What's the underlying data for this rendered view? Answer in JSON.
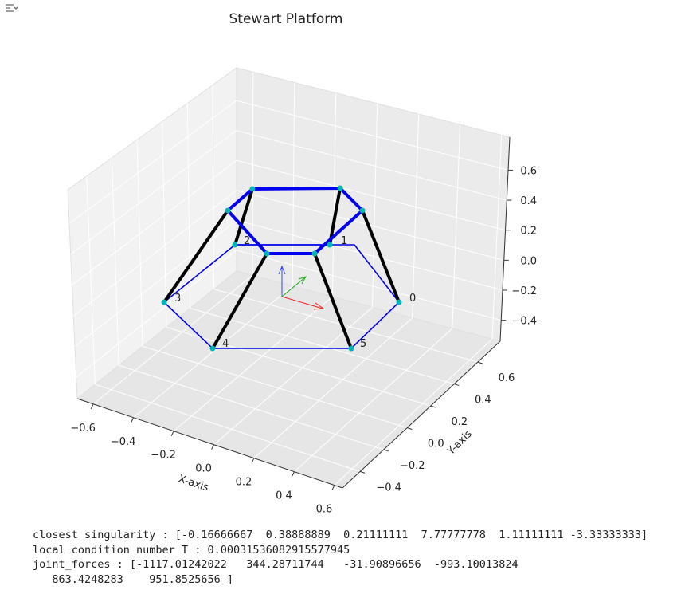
{
  "chart_data": {
    "type": "line3d",
    "title": "Stewart Platform",
    "xlabel": "X-axis",
    "ylabel": "Y-axis",
    "xlim": [
      -0.68,
      0.64
    ],
    "ylim": [
      -0.55,
      0.79
    ],
    "zlim": [
      -0.54,
      0.82
    ],
    "xticks": [
      {
        "value": -0.6,
        "label": "−0.6"
      },
      {
        "value": -0.4,
        "label": "−0.4"
      },
      {
        "value": -0.2,
        "label": "−0.2"
      },
      {
        "value": 0.0,
        "label": "0.0"
      },
      {
        "value": 0.2,
        "label": "0.2"
      },
      {
        "value": 0.4,
        "label": "0.4"
      },
      {
        "value": 0.6,
        "label": "0.6"
      }
    ],
    "yticks": [
      {
        "value": -0.4,
        "label": "−0.4"
      },
      {
        "value": -0.2,
        "label": "−0.2"
      },
      {
        "value": 0.0,
        "label": "0.0"
      },
      {
        "value": 0.2,
        "label": "0.2"
      },
      {
        "value": 0.4,
        "label": "0.4"
      },
      {
        "value": 0.6,
        "label": "0.6"
      }
    ],
    "zticks": [
      {
        "value": -0.4,
        "label": "−0.4"
      },
      {
        "value": -0.2,
        "label": "−0.2"
      },
      {
        "value": 0.0,
        "label": "0.0"
      },
      {
        "value": 0.2,
        "label": "0.2"
      },
      {
        "value": 0.4,
        "label": "0.4"
      },
      {
        "value": 0.6,
        "label": "0.6"
      }
    ],
    "vertex_labels": [
      "0",
      "1",
      "2",
      "3",
      "4",
      "5"
    ],
    "grid": true
  },
  "output": {
    "lines": [
      "closest singularity : [-0.16666667  0.38888889  0.21111111  7.77777778  1.11111111 -3.33333333]",
      "local condition number T : 0.00031536082915577945",
      "joint_forces : [-1117.01242022   344.28711744   -31.90896656  -993.10013824",
      "   863.4248283    951.8525656 ]"
    ]
  }
}
